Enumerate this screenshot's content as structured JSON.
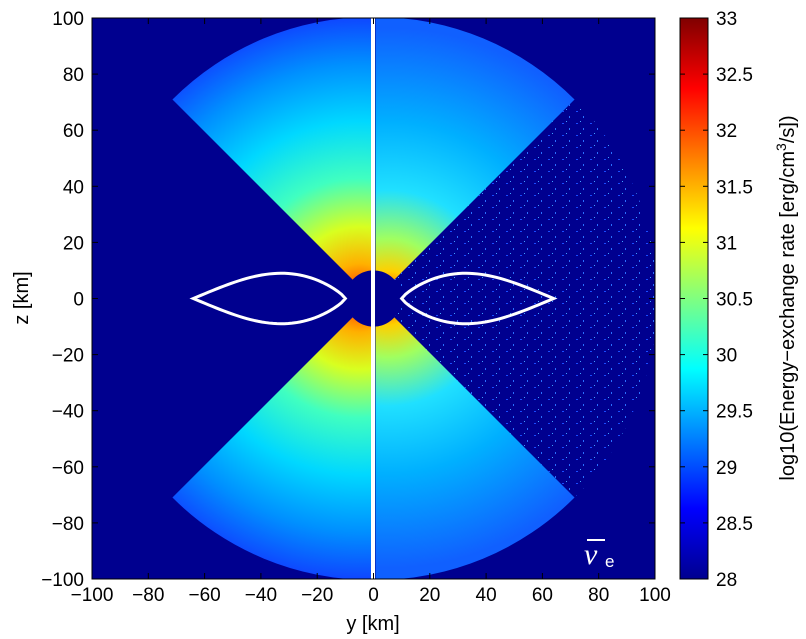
{
  "chart_data": {
    "type": "heatmap",
    "title": "",
    "xlabel": "y [km]",
    "ylabel": "z [km]",
    "xlim": [
      -100,
      100
    ],
    "ylim": [
      -100,
      100
    ],
    "x_ticks": [
      -100,
      -80,
      -60,
      -40,
      -20,
      0,
      20,
      40,
      60,
      80,
      100
    ],
    "y_ticks": [
      -100,
      -80,
      -60,
      -40,
      -20,
      0,
      20,
      40,
      60,
      80,
      100
    ],
    "colorbar": {
      "label": "log10(Energy−exchange rate [erg/cm",
      "label_sup": "3",
      "label_end": "/s])",
      "range": [
        28,
        33
      ],
      "ticks": [
        "28",
        "28.5",
        "29",
        "29.5",
        "30",
        "30.5",
        "31",
        "31.5",
        "32",
        "32.5",
        "33"
      ],
      "colormap": "jet"
    },
    "domain_radius_km": 100,
    "cone_half_angle_deg": 45,
    "contour_lobe": {
      "color": "#ffffff",
      "inner_edge_y_km": 10,
      "outer_edge_y_km": 64,
      "max_half_height_km": 9
    },
    "panel_annotation": {
      "symbol": "ν",
      "subscript": "e",
      "overbar": true
    },
    "panels": [
      {
        "side": "left",
        "description_y_range": [
          -100,
          0
        ]
      },
      {
        "side": "right",
        "description_y_range": [
          0,
          100
        ]
      }
    ],
    "grid": false,
    "colors": {
      "background": "#00008f",
      "divider": "#ffffff",
      "contour": "#ffffff"
    }
  }
}
